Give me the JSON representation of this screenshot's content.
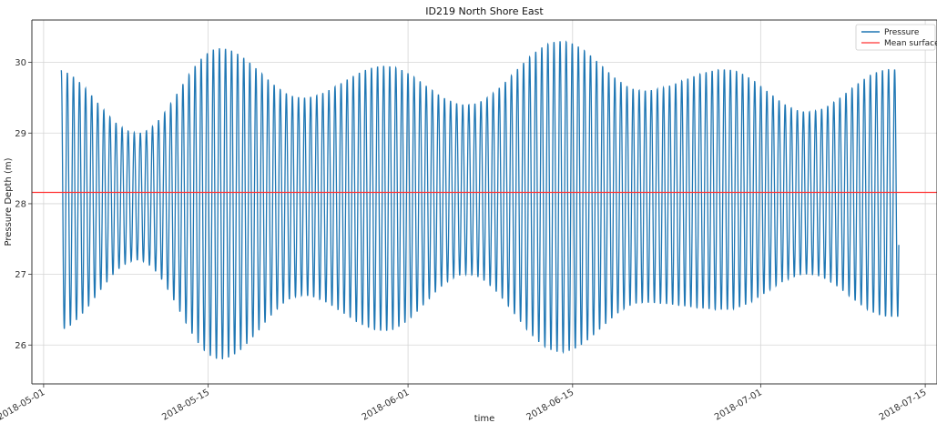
{
  "chart_data": {
    "type": "line",
    "title": "ID219 North Shore East",
    "xlabel": "time",
    "ylabel": "Pressure Depth (m)",
    "xlim": [
      "2018-04-30",
      "2018-07-16"
    ],
    "ylim": [
      25.45,
      30.6
    ],
    "x_ticks": [
      "2018-05-01",
      "2018-05-15",
      "2018-06-01",
      "2018-06-15",
      "2018-07-01",
      "2018-07-15"
    ],
    "y_ticks": [
      26,
      27,
      28,
      29,
      30
    ],
    "grid": true,
    "legend_position": "top-right",
    "series": [
      {
        "name": "Pressure",
        "color": "#1f77b4",
        "description": "semi-diurnal tidal oscillation, ~2 cycles/day",
        "x_start": "2018-05-02T12:00",
        "x_end": "2018-07-12T18:00",
        "envelope": {
          "x": [
            "2018-05-02",
            "2018-05-09",
            "2018-05-16",
            "2018-05-23",
            "2018-05-30",
            "2018-06-06",
            "2018-06-14",
            "2018-06-21",
            "2018-06-28",
            "2018-07-05",
            "2018-07-12"
          ],
          "high": [
            29.9,
            29.0,
            30.2,
            29.5,
            29.95,
            29.4,
            30.3,
            29.6,
            29.9,
            29.3,
            29.9
          ],
          "low": [
            26.2,
            27.2,
            25.8,
            26.7,
            26.2,
            27.0,
            25.9,
            26.6,
            26.5,
            27.0,
            26.4
          ]
        }
      },
      {
        "name": "Mean surface",
        "color": "#ff3333",
        "type": "hline",
        "value": 28.16
      }
    ]
  }
}
